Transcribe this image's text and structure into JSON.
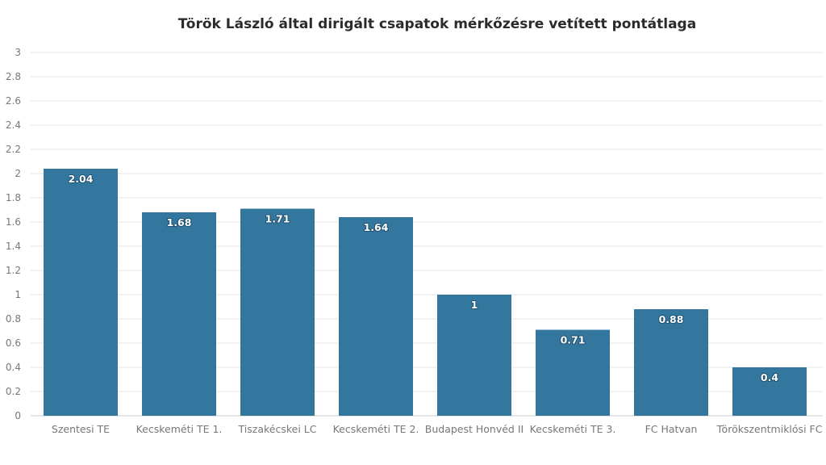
{
  "chart_data": {
    "type": "bar",
    "title": "Török László által dirigált csapatok mérkőzésre vetített pontátlaga",
    "xlabel": "",
    "ylabel": "",
    "ylim": [
      0,
      3
    ],
    "yticks": [
      0,
      0.2,
      0.4,
      0.6,
      0.8,
      1,
      1.2,
      1.4,
      1.6,
      1.8,
      2,
      2.2,
      2.4,
      2.6,
      2.8,
      3
    ],
    "ytick_labels": [
      "0",
      "0.2",
      "0.4",
      "0.6",
      "0.8",
      "1",
      "1.2",
      "1.4",
      "1.6",
      "1.8",
      "2",
      "2.2",
      "2.4",
      "2.6",
      "2.8",
      "3"
    ],
    "grid": true,
    "categories": [
      "Szentesi TE",
      "Kecskeméti TE 1.",
      "Tiszakécskei LC",
      "Kecskeméti TE 2.",
      "Budapest Honvéd II",
      "Kecskeméti TE 3.",
      "FC Hatvan",
      "Törökszentmiklósi FC"
    ],
    "values": [
      2.04,
      1.68,
      1.71,
      1.64,
      1,
      0.71,
      0.88,
      0.4
    ],
    "value_labels": [
      "2.04",
      "1.68",
      "1.71",
      "1.64",
      "1",
      "0.71",
      "0.88",
      "0.4"
    ],
    "colors": {
      "bar": "#33779f",
      "grid": "#e6e6e6",
      "axis": "#cccccc"
    }
  }
}
